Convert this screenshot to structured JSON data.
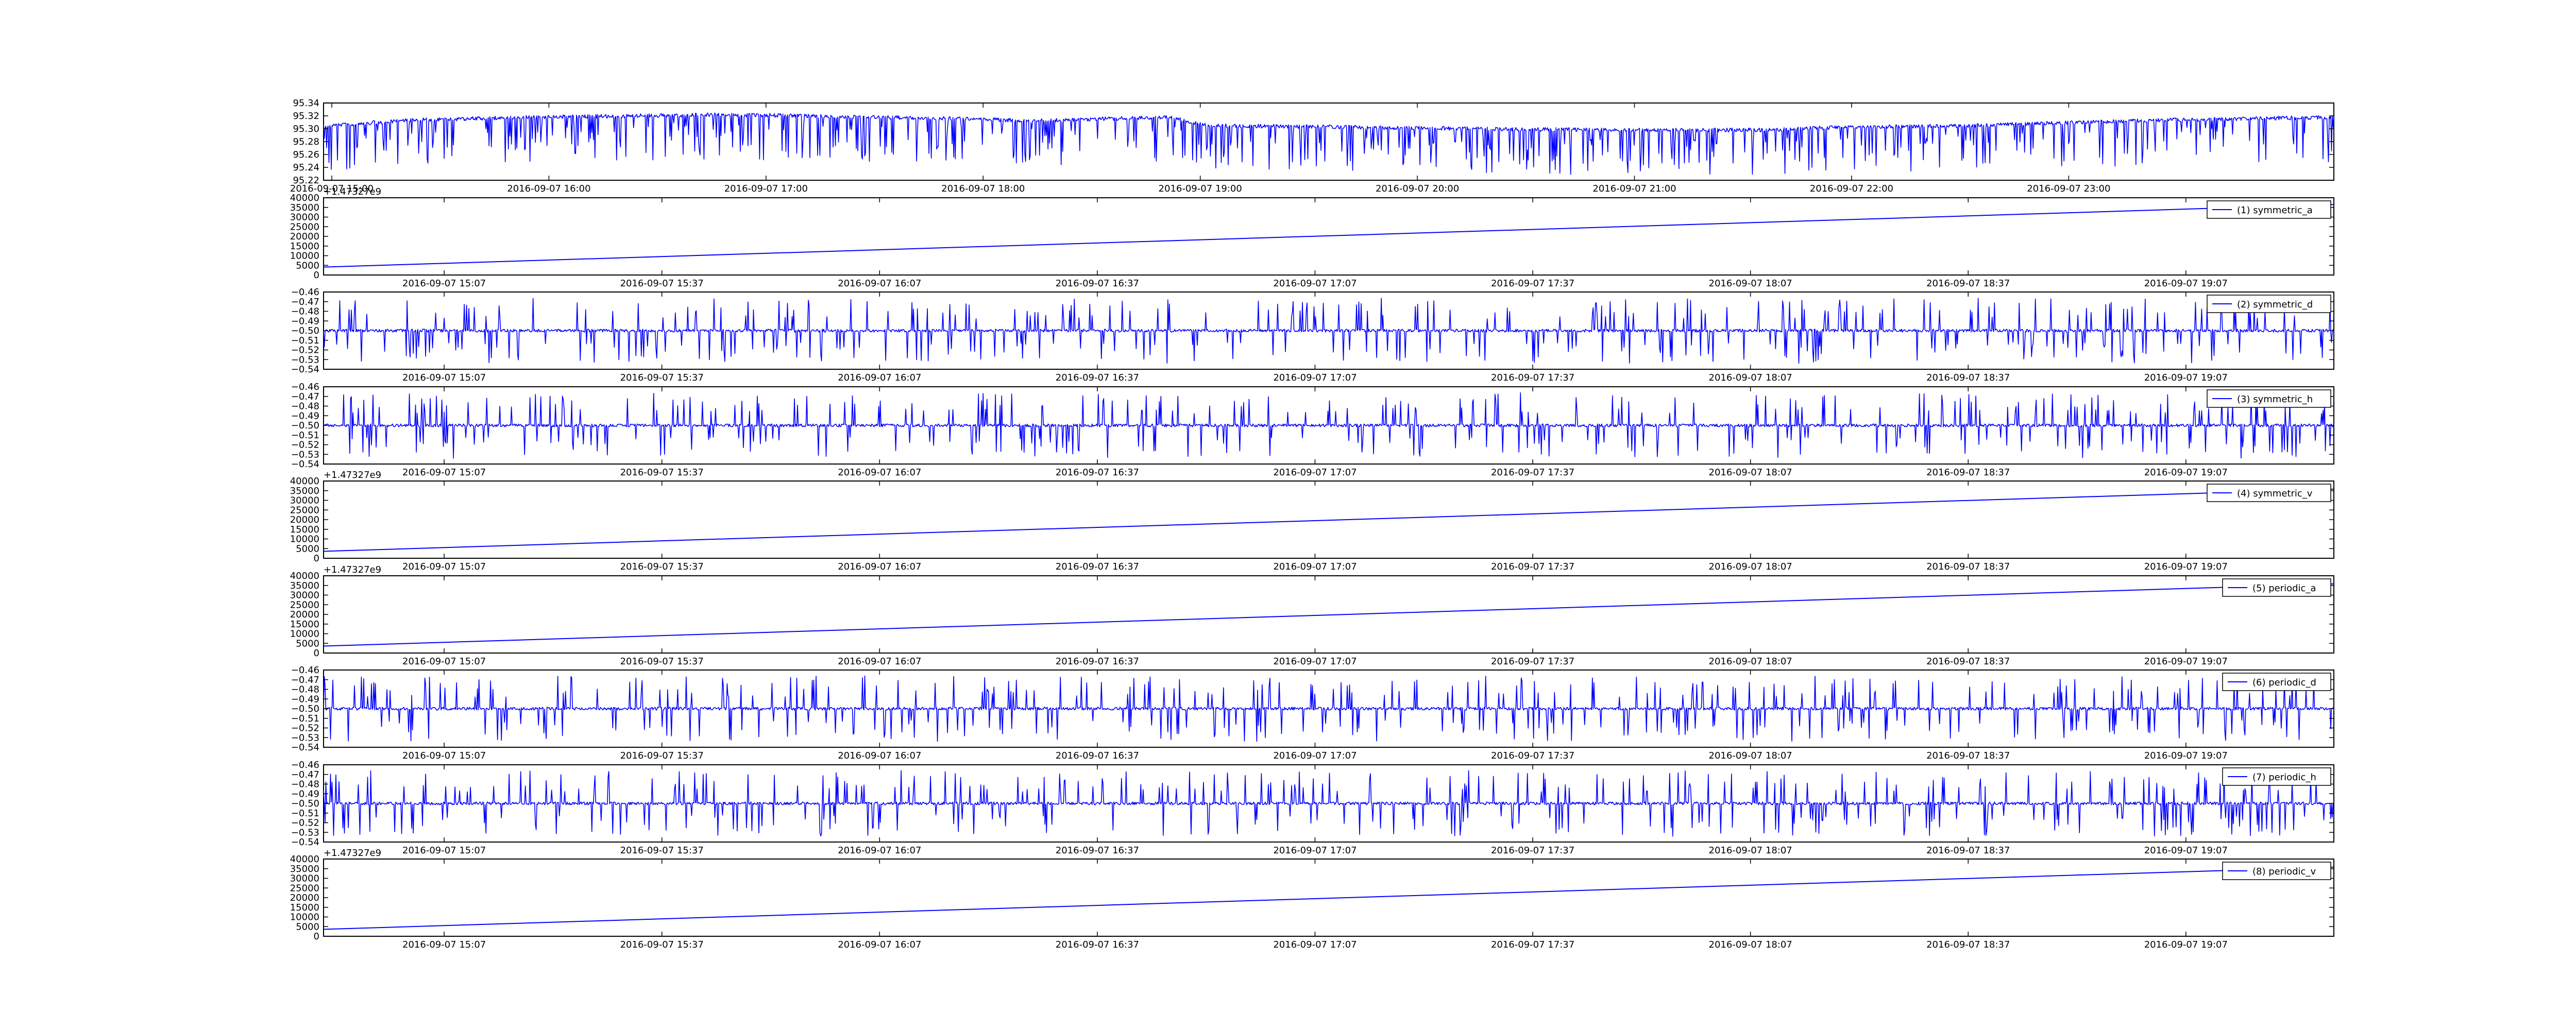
{
  "figure": {
    "background": "#ffffff",
    "line_color": "#0000ff"
  },
  "chart_data": [
    {
      "type": "line",
      "title": "",
      "xlabel": "",
      "ylabel": "",
      "xlim": [
        "2016-09-07 14:58",
        "2016-09-08 00:15"
      ],
      "ylim": [
        95.22,
        95.34
      ],
      "xticks": [
        "2016-09-07 15:00",
        "2016-09-07 16:00",
        "2016-09-07 17:00",
        "2016-09-07 18:00",
        "2016-09-07 19:00",
        "2016-09-07 20:00",
        "2016-09-07 21:00",
        "2016-09-07 22:00",
        "2016-09-07 23:00"
      ],
      "yticks": [
        "95.22",
        "95.24",
        "95.26",
        "95.28",
        "95.30",
        "95.32",
        "95.34"
      ],
      "grid": false,
      "series": [
        {
          "baseline": [
            [
              0,
              95.304
            ],
            [
              0.04,
              95.313
            ],
            [
              0.1,
              95.318
            ],
            [
              0.2,
              95.322
            ],
            [
              0.33,
              95.315
            ],
            [
              0.35,
              95.312
            ],
            [
              0.42,
              95.318
            ],
            [
              0.44,
              95.305
            ],
            [
              0.5,
              95.303
            ],
            [
              0.6,
              95.299
            ],
            [
              0.65,
              95.298
            ],
            [
              0.72,
              95.298
            ],
            [
              0.75,
              95.302
            ],
            [
              0.82,
              95.305
            ],
            [
              0.92,
              95.314
            ],
            [
              1,
              95.318
            ]
          ],
          "noise": 0.003,
          "spike_count": 520,
          "spike_depth": [
            0.012,
            0.07
          ]
        }
      ]
    },
    {
      "type": "line",
      "offset_label": "+1.47327e9",
      "ylim": [
        0,
        40000
      ],
      "yticks": [
        "0",
        "5000",
        "10000",
        "15000",
        "20000",
        "25000",
        "30000",
        "35000",
        "40000"
      ],
      "xticks": [
        "2016-09-07 15:07",
        "2016-09-07 15:37",
        "2016-09-07 16:07",
        "2016-09-07 16:37",
        "2016-09-07 17:07",
        "2016-09-07 17:37",
        "2016-09-07 18:07",
        "2016-09-07 18:37",
        "2016-09-07 19:07"
      ],
      "legend_placement": "upper right",
      "series": [
        {
          "name": "(1) symmetric_a",
          "x": [
            0,
            1
          ],
          "y": [
            4100,
            36500
          ]
        }
      ]
    },
    {
      "type": "line",
      "ylim": [
        -0.54,
        -0.46
      ],
      "yticks": [
        "−0.54",
        "−0.53",
        "−0.52",
        "−0.51",
        "−0.50",
        "−0.49",
        "−0.48",
        "−0.47",
        "−0.46"
      ],
      "xticks": [
        "2016-09-07 15:07",
        "2016-09-07 15:37",
        "2016-09-07 16:07",
        "2016-09-07 16:37",
        "2016-09-07 17:07",
        "2016-09-07 17:37",
        "2016-09-07 18:07",
        "2016-09-07 18:37",
        "2016-09-07 19:07"
      ],
      "legend_placement": "upper right",
      "series": [
        {
          "name": "(2) symmetric_d",
          "baseline": -0.5,
          "noise": 0.0015,
          "spike_count": 430,
          "spike_span": [
            0.012,
            0.034
          ]
        }
      ]
    },
    {
      "type": "line",
      "ylim": [
        -0.54,
        -0.46
      ],
      "yticks": [
        "−0.54",
        "−0.53",
        "−0.52",
        "−0.51",
        "−0.50",
        "−0.49",
        "−0.48",
        "−0.47",
        "−0.46"
      ],
      "xticks": [
        "2016-09-07 15:07",
        "2016-09-07 15:37",
        "2016-09-07 16:07",
        "2016-09-07 16:37",
        "2016-09-07 17:07",
        "2016-09-07 17:37",
        "2016-09-07 18:07",
        "2016-09-07 18:37",
        "2016-09-07 19:07"
      ],
      "legend_placement": "upper right",
      "series": [
        {
          "name": "(3) symmetric_h",
          "baseline": -0.5,
          "noise": 0.0015,
          "spike_count": 430,
          "spike_span": [
            0.012,
            0.034
          ]
        }
      ]
    },
    {
      "type": "line",
      "offset_label": "+1.47327e9",
      "ylim": [
        0,
        40000
      ],
      "yticks": [
        "0",
        "5000",
        "10000",
        "15000",
        "20000",
        "25000",
        "30000",
        "35000",
        "40000"
      ],
      "xticks": [
        "2016-09-07 15:07",
        "2016-09-07 15:37",
        "2016-09-07 16:07",
        "2016-09-07 16:37",
        "2016-09-07 17:07",
        "2016-09-07 17:37",
        "2016-09-07 18:07",
        "2016-09-07 18:37",
        "2016-09-07 19:07"
      ],
      "legend_placement": "upper right",
      "series": [
        {
          "name": "(4) symmetric_v",
          "x": [
            0,
            1
          ],
          "y": [
            3600,
            35800
          ]
        }
      ]
    },
    {
      "type": "line",
      "offset_label": "+1.47327e9",
      "ylim": [
        0,
        40000
      ],
      "yticks": [
        "0",
        "5000",
        "10000",
        "15000",
        "20000",
        "25000",
        "30000",
        "35000",
        "40000"
      ],
      "xticks": [
        "2016-09-07 15:07",
        "2016-09-07 15:37",
        "2016-09-07 16:07",
        "2016-09-07 16:37",
        "2016-09-07 17:07",
        "2016-09-07 17:37",
        "2016-09-07 18:07",
        "2016-09-07 18:37",
        "2016-09-07 19:07"
      ],
      "legend_placement": "upper right",
      "series": [
        {
          "name": "(5) periodic_a",
          "x": [
            0,
            1
          ],
          "y": [
            3600,
            35800
          ]
        }
      ]
    },
    {
      "type": "line",
      "ylim": [
        -0.54,
        -0.46
      ],
      "yticks": [
        "−0.54",
        "−0.53",
        "−0.52",
        "−0.51",
        "−0.50",
        "−0.49",
        "−0.48",
        "−0.47",
        "−0.46"
      ],
      "xticks": [
        "2016-09-07 15:07",
        "2016-09-07 15:37",
        "2016-09-07 16:07",
        "2016-09-07 16:37",
        "2016-09-07 17:07",
        "2016-09-07 17:37",
        "2016-09-07 18:07",
        "2016-09-07 18:37",
        "2016-09-07 19:07"
      ],
      "legend_placement": "upper right",
      "series": [
        {
          "name": "(6) periodic_d",
          "baseline": -0.5,
          "noise": 0.0015,
          "spike_count": 430,
          "spike_span": [
            0.012,
            0.034
          ]
        }
      ]
    },
    {
      "type": "line",
      "ylim": [
        -0.54,
        -0.46
      ],
      "yticks": [
        "−0.54",
        "−0.53",
        "−0.52",
        "−0.51",
        "−0.50",
        "−0.49",
        "−0.48",
        "−0.47",
        "−0.46"
      ],
      "xticks": [
        "2016-09-07 15:07",
        "2016-09-07 15:37",
        "2016-09-07 16:07",
        "2016-09-07 16:37",
        "2016-09-07 17:07",
        "2016-09-07 17:37",
        "2016-09-07 18:07",
        "2016-09-07 18:37",
        "2016-09-07 19:07"
      ],
      "legend_placement": "upper right",
      "series": [
        {
          "name": "(7) periodic_h",
          "baseline": -0.5,
          "noise": 0.0015,
          "spike_count": 430,
          "spike_span": [
            0.012,
            0.034
          ]
        }
      ]
    },
    {
      "type": "line",
      "offset_label": "+1.47327e9",
      "ylim": [
        0,
        40000
      ],
      "yticks": [
        "0",
        "5000",
        "10000",
        "15000",
        "20000",
        "25000",
        "30000",
        "35000",
        "40000"
      ],
      "xticks": [
        "2016-09-07 15:07",
        "2016-09-07 15:37",
        "2016-09-07 16:07",
        "2016-09-07 16:37",
        "2016-09-07 17:07",
        "2016-09-07 17:37",
        "2016-09-07 18:07",
        "2016-09-07 18:37",
        "2016-09-07 19:07"
      ],
      "legend_placement": "upper right",
      "series": [
        {
          "name": "(8) periodic_v",
          "x": [
            0,
            1
          ],
          "y": [
            3600,
            35800
          ]
        }
      ]
    }
  ]
}
